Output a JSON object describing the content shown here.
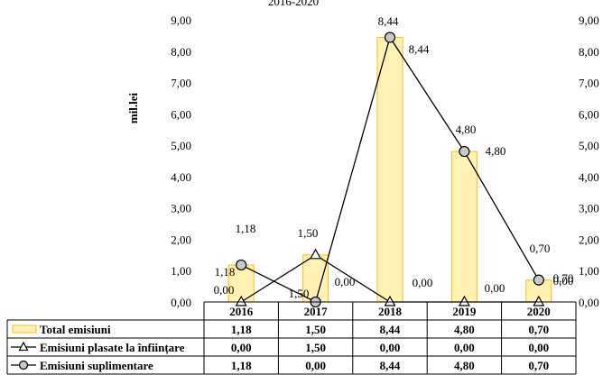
{
  "chart_data": {
    "type": "bar",
    "title_fragment": "2016-2020",
    "categories": [
      "2016",
      "2017",
      "2018",
      "2019",
      "2020"
    ],
    "ylabel": "mil.lei",
    "ylim": [
      0,
      9
    ],
    "yticks": [
      "0,00",
      "1,00",
      "2,00",
      "3,00",
      "4,00",
      "5,00",
      "6,00",
      "7,00",
      "8,00",
      "9,00"
    ],
    "secondary_yticks": [
      "0,00",
      "1,00",
      "2,00",
      "3,00",
      "4,00",
      "5,00",
      "6,00",
      "7,00",
      "8,00",
      "9,00"
    ],
    "grid": false,
    "legend_placement": "data-table-below",
    "series": [
      {
        "name": "Total emisiuni",
        "type": "bar",
        "values": [
          1.18,
          1.5,
          8.44,
          4.8,
          0.7
        ],
        "labels": [
          "1,18",
          "1,50",
          "8,44",
          "4,80",
          "0,70"
        ],
        "color": "#fff2b3",
        "stroke": "#f0c020"
      },
      {
        "name": "Emisiuni plasate la înființare",
        "type": "line",
        "marker": "triangle",
        "values": [
          0.0,
          1.5,
          0.0,
          0.0,
          0.0
        ],
        "labels": [
          "0,00",
          "1,50",
          "0,00",
          "0,00",
          "0,00"
        ],
        "color": "#000000"
      },
      {
        "name": "Emisiuni suplimentare",
        "type": "line",
        "marker": "circle",
        "values": [
          1.18,
          0.0,
          8.44,
          4.8,
          0.7
        ],
        "labels": [
          "1,18",
          "0,00",
          "8,44",
          "4,80",
          "0,70"
        ],
        "color": "#000000",
        "marker_fill": "#c8c8c8"
      }
    ]
  }
}
